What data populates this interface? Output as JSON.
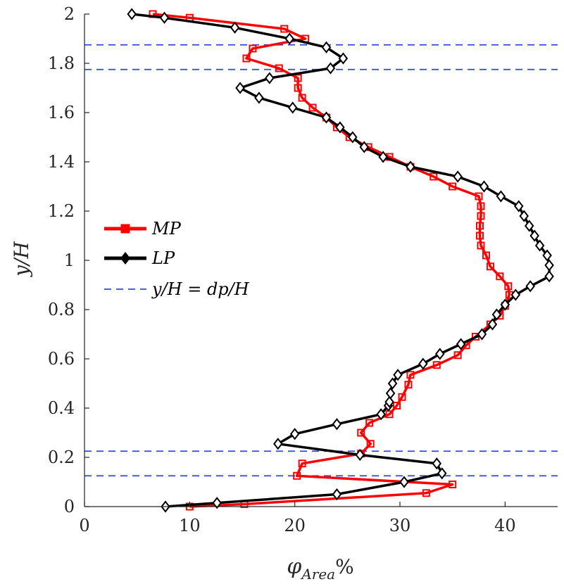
{
  "chart_data": {
    "type": "line",
    "xlabel": "φArea%",
    "xlabel_parts": {
      "main": "φ",
      "sub": "Area",
      "suffix": "%"
    },
    "ylabel": "y/H",
    "xlim": [
      0,
      45
    ],
    "ylim": [
      0,
      2
    ],
    "xticks": [
      "0",
      "10",
      "20",
      "30",
      "40"
    ],
    "yticks": [
      "0",
      "0.2",
      "0.4",
      "0.6",
      "0.8",
      "1",
      "1.2",
      "1.4",
      "1.6",
      "1.8",
      "2"
    ],
    "grid": false,
    "legend_position": "left-center",
    "legend": [
      {
        "label": "MP",
        "color": "#ff0000",
        "marker": "square",
        "style": "solid"
      },
      {
        "label": "LP",
        "color": "#000000",
        "marker": "diamond",
        "style": "solid"
      },
      {
        "label": "y/H = dp/H",
        "color": "#3344ee",
        "marker": "none",
        "style": "dashed"
      }
    ],
    "series": [
      {
        "name": "MP",
        "color": "#ff0000",
        "marker": "square",
        "points": [
          [
            10.0,
            0.0
          ],
          [
            15.2,
            0.01
          ],
          [
            32.5,
            0.055
          ],
          [
            35.0,
            0.09
          ],
          [
            20.2,
            0.125
          ],
          [
            20.7,
            0.175
          ],
          [
            26.3,
            0.215
          ],
          [
            27.2,
            0.255
          ],
          [
            26.3,
            0.3
          ],
          [
            27.1,
            0.34
          ],
          [
            29.0,
            0.375
          ],
          [
            29.7,
            0.41
          ],
          [
            30.2,
            0.445
          ],
          [
            30.8,
            0.495
          ],
          [
            31.0,
            0.535
          ],
          [
            33.5,
            0.575
          ],
          [
            35.5,
            0.615
          ],
          [
            36.3,
            0.655
          ],
          [
            37.2,
            0.69
          ],
          [
            38.6,
            0.74
          ],
          [
            39.5,
            0.775
          ],
          [
            40.0,
            0.815
          ],
          [
            40.4,
            0.86
          ],
          [
            40.3,
            0.895
          ],
          [
            39.5,
            0.935
          ],
          [
            38.6,
            0.975
          ],
          [
            38.2,
            1.02
          ],
          [
            37.7,
            1.06
          ],
          [
            37.6,
            1.1
          ],
          [
            37.6,
            1.14
          ],
          [
            37.7,
            1.18
          ],
          [
            37.7,
            1.22
          ],
          [
            37.5,
            1.26
          ],
          [
            35.0,
            1.3
          ],
          [
            33.2,
            1.34
          ],
          [
            31.0,
            1.38
          ],
          [
            29.0,
            1.42
          ],
          [
            27.0,
            1.46
          ],
          [
            25.2,
            1.5
          ],
          [
            24.0,
            1.54
          ],
          [
            23.0,
            1.58
          ],
          [
            21.7,
            1.62
          ],
          [
            20.7,
            1.66
          ],
          [
            20.3,
            1.7
          ],
          [
            20.3,
            1.74
          ],
          [
            18.5,
            1.78
          ],
          [
            15.4,
            1.82
          ],
          [
            16.0,
            1.86
          ],
          [
            21.0,
            1.9
          ],
          [
            19.0,
            1.94
          ],
          [
            10.0,
            1.985
          ],
          [
            6.5,
            2.0
          ]
        ]
      },
      {
        "name": "LP",
        "color": "#000000",
        "marker": "diamond",
        "points": [
          [
            7.7,
            0.0
          ],
          [
            12.6,
            0.015
          ],
          [
            24.0,
            0.05
          ],
          [
            30.4,
            0.1
          ],
          [
            34.0,
            0.135
          ],
          [
            33.5,
            0.175
          ],
          [
            26.2,
            0.21
          ],
          [
            18.4,
            0.255
          ],
          [
            20.0,
            0.295
          ],
          [
            24.0,
            0.335
          ],
          [
            28.2,
            0.375
          ],
          [
            28.9,
            0.41
          ],
          [
            29.0,
            0.425
          ],
          [
            29.1,
            0.46
          ],
          [
            29.3,
            0.5
          ],
          [
            29.8,
            0.535
          ],
          [
            32.2,
            0.58
          ],
          [
            33.8,
            0.62
          ],
          [
            35.8,
            0.66
          ],
          [
            37.8,
            0.7
          ],
          [
            38.8,
            0.74
          ],
          [
            39.2,
            0.78
          ],
          [
            40.0,
            0.82
          ],
          [
            41.0,
            0.86
          ],
          [
            42.4,
            0.895
          ],
          [
            44.2,
            0.935
          ],
          [
            44.2,
            0.98
          ],
          [
            44.0,
            1.02
          ],
          [
            43.3,
            1.06
          ],
          [
            42.8,
            1.1
          ],
          [
            42.3,
            1.14
          ],
          [
            41.8,
            1.18
          ],
          [
            41.3,
            1.22
          ],
          [
            39.6,
            1.26
          ],
          [
            38.0,
            1.3
          ],
          [
            35.5,
            1.34
          ],
          [
            31.0,
            1.38
          ],
          [
            28.4,
            1.42
          ],
          [
            26.6,
            1.46
          ],
          [
            25.5,
            1.5
          ],
          [
            24.3,
            1.54
          ],
          [
            23.0,
            1.58
          ],
          [
            19.8,
            1.62
          ],
          [
            16.6,
            1.66
          ],
          [
            14.8,
            1.7
          ],
          [
            17.6,
            1.74
          ],
          [
            23.4,
            1.78
          ],
          [
            24.6,
            1.82
          ],
          [
            23.0,
            1.865
          ],
          [
            19.5,
            1.9
          ],
          [
            14.3,
            1.945
          ],
          [
            7.6,
            1.985
          ],
          [
            4.5,
            2.0
          ]
        ]
      }
    ],
    "reference_lines": {
      "name": "y/H = dp/H",
      "color": "#3344ee",
      "style": "dashed",
      "y_values": [
        1.875,
        1.775,
        0.225,
        0.125
      ]
    }
  }
}
